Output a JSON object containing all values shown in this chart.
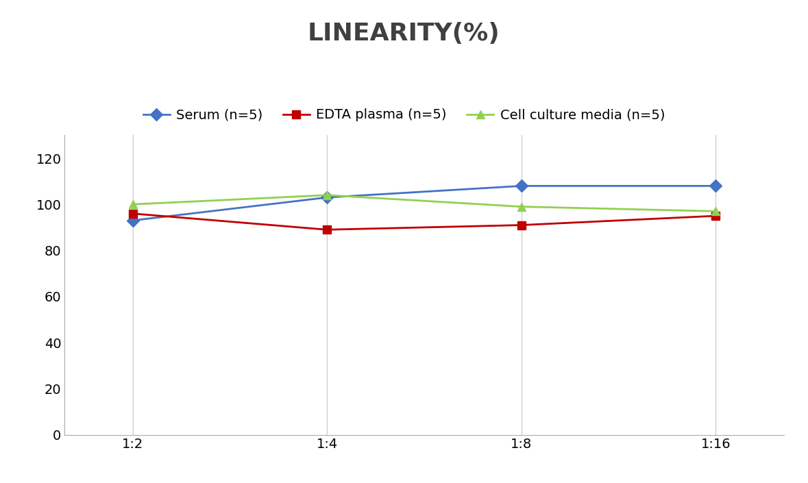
{
  "title": "LINEARITY(%)",
  "x_labels": [
    "1:2",
    "1:4",
    "1:8",
    "1:16"
  ],
  "x_positions": [
    0,
    1,
    2,
    3
  ],
  "series": [
    {
      "name": "Serum (n=5)",
      "values": [
        93,
        103,
        108,
        108
      ],
      "color": "#4472C4",
      "marker": "D"
    },
    {
      "name": "EDTA plasma (n=5)",
      "values": [
        96,
        89,
        91,
        95
      ],
      "color": "#C00000",
      "marker": "s"
    },
    {
      "name": "Cell culture media (n=5)",
      "values": [
        100,
        104,
        99,
        97
      ],
      "color": "#92D050",
      "marker": "^"
    }
  ],
  "ylim": [
    0,
    130
  ],
  "yticks": [
    0,
    20,
    40,
    60,
    80,
    100,
    120
  ],
  "title_fontsize": 26,
  "legend_fontsize": 14,
  "tick_fontsize": 14,
  "title_color": "#404040",
  "background_color": "#ffffff",
  "grid_color": "#d0d0d0"
}
